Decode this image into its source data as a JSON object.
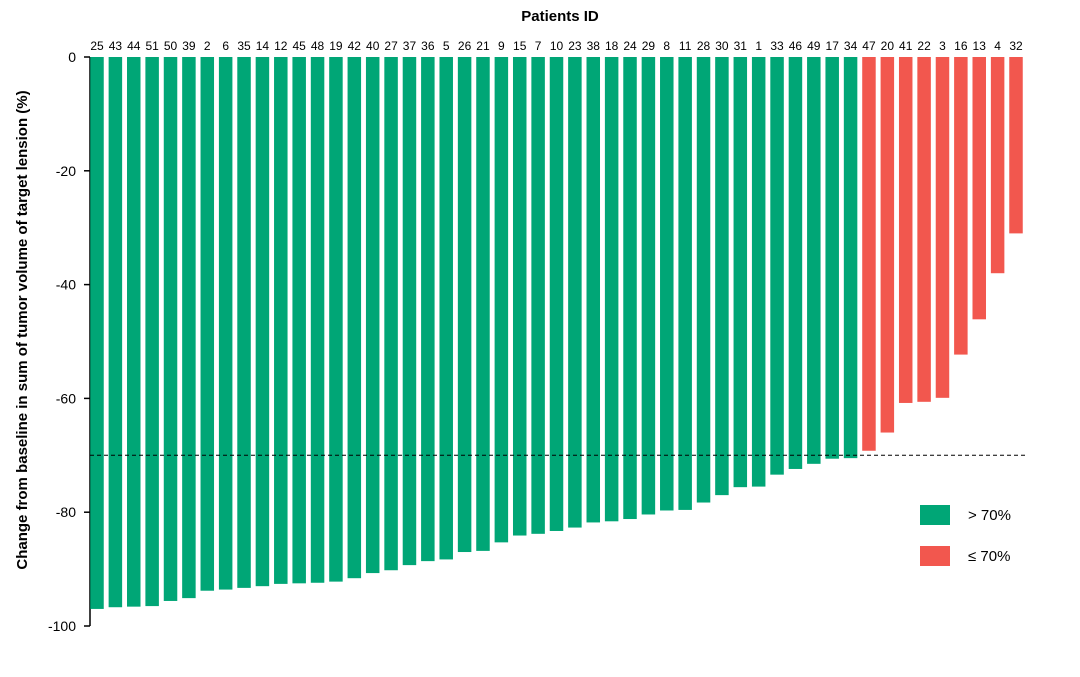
{
  "chart_data": {
    "type": "bar",
    "title": "Patients ID",
    "xlabel": "",
    "ylabel": "Change from baseline in sum of tumor volume of target lension (%)",
    "ylim": [
      -100,
      0
    ],
    "yticks": [
      "0",
      "-20",
      "-40",
      "-60",
      "-80",
      "-100"
    ],
    "threshold": -70,
    "categories": [
      "25",
      "43",
      "44",
      "51",
      "50",
      "39",
      "2",
      "6",
      "35",
      "14",
      "12",
      "45",
      "48",
      "19",
      "42",
      "40",
      "27",
      "37",
      "36",
      "5",
      "26",
      "21",
      "9",
      "15",
      "7",
      "10",
      "23",
      "38",
      "18",
      "24",
      "29",
      "8",
      "11",
      "28",
      "30",
      "31",
      "1",
      "33",
      "46",
      "49",
      "17",
      "34",
      "47",
      "20",
      "41",
      "22",
      "3",
      "16",
      "13",
      "4",
      "32"
    ],
    "values": [
      -97,
      -96.7,
      -96.6,
      -96.5,
      -95.6,
      -95.1,
      -93.8,
      -93.6,
      -93.3,
      -93.0,
      -92.6,
      -92.5,
      -92.4,
      -92.2,
      -91.6,
      -90.7,
      -90.2,
      -89.3,
      -88.6,
      -88.3,
      -87.0,
      -86.8,
      -85.3,
      -84.1,
      -83.8,
      -83.3,
      -82.7,
      -81.8,
      -81.6,
      -81.2,
      -80.4,
      -79.7,
      -79.6,
      -78.3,
      -77.0,
      -75.6,
      -75.5,
      -73.4,
      -72.4,
      -71.5,
      -70.6,
      -70.5,
      -69.2,
      -66.0,
      -60.8,
      -60.6,
      -59.9,
      -52.3,
      -46.1,
      -38.0,
      -31.0
    ],
    "series": [
      {
        "name": "> 70%",
        "color": "#00a676"
      },
      {
        "name": "≤ 70%",
        "color": "#f2574e"
      }
    ],
    "legend_position": "bottom-right",
    "grid": false
  }
}
